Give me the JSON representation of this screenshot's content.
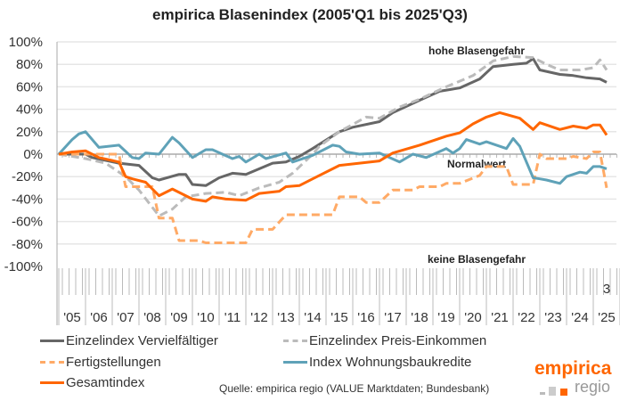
{
  "chart_data": {
    "type": "line",
    "title": "empirica Blasenindex (2005'Q1 bis 2025'Q3)",
    "x_range": [
      "2005Q1",
      "2025Q3"
    ],
    "ylim": [
      -100,
      100
    ],
    "y_ticks": [
      "100%",
      "80%",
      "60%",
      "40%",
      "20%",
      "0%",
      "-20%",
      "-40%",
      "-60%",
      "-80%",
      "-100%"
    ],
    "year_labels": [
      "'05",
      "'06",
      "'07",
      "'08",
      "'09",
      "'10",
      "'11",
      "'12",
      "'13",
      "'14",
      "'15",
      "'16",
      "'17",
      "'18",
      "'19",
      "'20",
      "'21",
      "'22",
      "'23",
      "'24",
      "'25"
    ],
    "last_quarter_label": "3",
    "grid": true,
    "annotations": {
      "high": "hohe Blasengefahr",
      "normal": "Normalwert",
      "none": "keine Blasengefahr"
    },
    "legend_placement": "bottom",
    "series": [
      {
        "name": "Einzelindex Vervielfältiger",
        "color": "#666666",
        "style": "solid",
        "points": [
          [
            "2005Q1",
            0
          ],
          [
            "2006Q1",
            0
          ],
          [
            "2006Q2",
            -3
          ],
          [
            "2007Q2",
            -8
          ],
          [
            "2008Q1",
            -10
          ],
          [
            "2008Q3",
            -21
          ],
          [
            "2008Q4",
            -23
          ],
          [
            "2009Q3",
            -18
          ],
          [
            "2009Q4",
            -18
          ],
          [
            "2010Q1",
            -27
          ],
          [
            "2010Q3",
            -28
          ],
          [
            "2011Q1",
            -21
          ],
          [
            "2011Q3",
            -17
          ],
          [
            "2012Q1",
            -18
          ],
          [
            "2013Q1",
            -8
          ],
          [
            "2013Q3",
            -7
          ],
          [
            "2014Q1",
            -2
          ],
          [
            "2014Q3",
            5
          ],
          [
            "2015Q3",
            20
          ],
          [
            "2016Q1",
            24
          ],
          [
            "2017Q1",
            29
          ],
          [
            "2017Q3",
            37
          ],
          [
            "2018Q3",
            48
          ],
          [
            "2019Q2",
            56
          ],
          [
            "2020Q1",
            59
          ],
          [
            "2020Q4",
            67
          ],
          [
            "2021Q2",
            78
          ],
          [
            "2022Q1",
            80
          ],
          [
            "2022Q3",
            81
          ],
          [
            "2022Q4",
            85
          ],
          [
            "2023Q1",
            75
          ],
          [
            "2023Q4",
            71
          ],
          [
            "2024Q2",
            70
          ],
          [
            "2024Q4",
            68
          ],
          [
            "2025Q2",
            67
          ],
          [
            "2025Q3",
            64
          ]
        ]
      },
      {
        "name": "Einzelindex Preis-Einkommen",
        "color": "#bbbbbb",
        "style": "dashed",
        "points": [
          [
            "2005Q1",
            0
          ],
          [
            "2006Q1",
            -4
          ],
          [
            "2006Q4",
            -8
          ],
          [
            "2007Q3",
            -20
          ],
          [
            "2008Q1",
            -32
          ],
          [
            "2008Q4",
            -55
          ],
          [
            "2009Q2",
            -49
          ],
          [
            "2009Q4",
            -38
          ],
          [
            "2010Q3",
            -35
          ],
          [
            "2011Q2",
            -34
          ],
          [
            "2011Q4",
            -37
          ],
          [
            "2012Q3",
            -30
          ],
          [
            "2013Q2",
            -25
          ],
          [
            "2013Q4",
            -17
          ],
          [
            "2014Q3",
            0
          ],
          [
            "2014Q4",
            7
          ],
          [
            "2015Q3",
            20
          ],
          [
            "2016Q3",
            33
          ],
          [
            "2017Q1",
            32
          ],
          [
            "2017Q4",
            42
          ],
          [
            "2018Q3",
            49
          ],
          [
            "2019Q3",
            60
          ],
          [
            "2020Q3",
            70
          ],
          [
            "2021Q2",
            83
          ],
          [
            "2022Q1",
            87
          ],
          [
            "2022Q4",
            86
          ],
          [
            "2023Q2",
            80
          ],
          [
            "2023Q4",
            75
          ],
          [
            "2024Q3",
            75
          ],
          [
            "2025Q1",
            77
          ],
          [
            "2025Q2",
            84
          ],
          [
            "2025Q3",
            75
          ]
        ]
      },
      {
        "name": "Fertigstellungen",
        "color": "#ffaa66",
        "style": "dashed",
        "points": [
          [
            "2005Q1",
            0
          ],
          [
            "2007Q2",
            0
          ],
          [
            "2007Q3",
            -29
          ],
          [
            "2008Q3",
            -29
          ],
          [
            "2008Q4",
            -57
          ],
          [
            "2009Q2",
            -57
          ],
          [
            "2009Q3",
            -77
          ],
          [
            "2010Q2",
            -77
          ],
          [
            "2010Q3",
            -79
          ],
          [
            "2012Q1",
            -79
          ],
          [
            "2012Q2",
            -67
          ],
          [
            "2013Q1",
            -67
          ],
          [
            "2013Q3",
            -54
          ],
          [
            "2015Q2",
            -54
          ],
          [
            "2015Q3",
            -38
          ],
          [
            "2016Q2",
            -38
          ],
          [
            "2016Q3",
            -43
          ],
          [
            "2017Q1",
            -43
          ],
          [
            "2017Q3",
            -32
          ],
          [
            "2018Q2",
            -32
          ],
          [
            "2018Q3",
            -29
          ],
          [
            "2019Q2",
            -29
          ],
          [
            "2019Q3",
            -26
          ],
          [
            "2020Q1",
            -26
          ],
          [
            "2020Q4",
            -19
          ],
          [
            "2021Q1",
            -11
          ],
          [
            "2021Q4",
            -11
          ],
          [
            "2022Q1",
            -27
          ],
          [
            "2022Q4",
            -27
          ],
          [
            "2023Q1",
            0
          ],
          [
            "2023Q2",
            -4
          ],
          [
            "2024Q1",
            -4
          ],
          [
            "2024Q2",
            -2
          ],
          [
            "2024Q4",
            -4
          ],
          [
            "2025Q1",
            2
          ],
          [
            "2025Q2",
            2
          ],
          [
            "2025Q3",
            -30
          ]
        ]
      },
      {
        "name": "Index Wohnungsbaukredite",
        "color": "#5fa2b8",
        "style": "solid",
        "points": [
          [
            "2005Q1",
            0
          ],
          [
            "2005Q3",
            13
          ],
          [
            "2005Q4",
            18
          ],
          [
            "2006Q1",
            20
          ],
          [
            "2006Q3",
            6
          ],
          [
            "2007Q2",
            8
          ],
          [
            "2007Q4",
            -3
          ],
          [
            "2008Q1",
            -4
          ],
          [
            "2008Q2",
            1
          ],
          [
            "2008Q4",
            0
          ],
          [
            "2009Q2",
            15
          ],
          [
            "2009Q3",
            10
          ],
          [
            "2010Q1",
            -3
          ],
          [
            "2010Q3",
            4
          ],
          [
            "2010Q4",
            4
          ],
          [
            "2011Q3",
            -4
          ],
          [
            "2011Q4",
            -2
          ],
          [
            "2012Q1",
            -7
          ],
          [
            "2012Q3",
            0
          ],
          [
            "2012Q4",
            -4
          ],
          [
            "2013Q3",
            1
          ],
          [
            "2013Q4",
            -7
          ],
          [
            "2014Q3",
            -1
          ],
          [
            "2015Q2",
            8
          ],
          [
            "2015Q3",
            7
          ],
          [
            "2015Q4",
            2
          ],
          [
            "2016Q2",
            0
          ],
          [
            "2017Q1",
            1
          ],
          [
            "2017Q4",
            -7
          ],
          [
            "2018Q2",
            0
          ],
          [
            "2018Q4",
            -3
          ],
          [
            "2019Q3",
            5
          ],
          [
            "2019Q4",
            1
          ],
          [
            "2020Q1",
            5
          ],
          [
            "2020Q2",
            13
          ],
          [
            "2020Q4",
            9
          ],
          [
            "2021Q1",
            11
          ],
          [
            "2021Q4",
            5
          ],
          [
            "2022Q1",
            14
          ],
          [
            "2022Q2",
            7
          ],
          [
            "2022Q4",
            -21
          ],
          [
            "2023Q1",
            -22
          ],
          [
            "2023Q2",
            -23
          ],
          [
            "2023Q4",
            -26
          ],
          [
            "2024Q1",
            -20
          ],
          [
            "2024Q3",
            -16
          ],
          [
            "2024Q4",
            -17
          ],
          [
            "2025Q1",
            -11
          ],
          [
            "2025Q2",
            -11
          ],
          [
            "2025Q3",
            -13
          ]
        ]
      },
      {
        "name": "Gesamtindex",
        "color": "#ff6600",
        "style": "solid",
        "points": [
          [
            "2005Q1",
            0
          ],
          [
            "2005Q3",
            2
          ],
          [
            "2006Q1",
            3
          ],
          [
            "2006Q3",
            -3
          ],
          [
            "2007Q2",
            -7
          ],
          [
            "2007Q3",
            -20
          ],
          [
            "2007Q4",
            -22
          ],
          [
            "2008Q2",
            -25
          ],
          [
            "2008Q4",
            -37
          ],
          [
            "2009Q2",
            -31
          ],
          [
            "2009Q4",
            -37
          ],
          [
            "2010Q1",
            -40
          ],
          [
            "2010Q3",
            -42
          ],
          [
            "2010Q4",
            -38
          ],
          [
            "2011Q2",
            -40
          ],
          [
            "2012Q1",
            -41
          ],
          [
            "2012Q3",
            -35
          ],
          [
            "2013Q2",
            -33
          ],
          [
            "2013Q3",
            -29
          ],
          [
            "2014Q1",
            -28
          ],
          [
            "2014Q3",
            -22
          ],
          [
            "2015Q3",
            -10
          ],
          [
            "2017Q1",
            -6
          ],
          [
            "2017Q3",
            1
          ],
          [
            "2018Q3",
            8
          ],
          [
            "2019Q3",
            16
          ],
          [
            "2020Q1",
            19
          ],
          [
            "2020Q3",
            27
          ],
          [
            "2021Q1",
            33
          ],
          [
            "2021Q3",
            37
          ],
          [
            "2022Q2",
            32
          ],
          [
            "2022Q4",
            22
          ],
          [
            "2023Q1",
            28
          ],
          [
            "2023Q4",
            22
          ],
          [
            "2024Q2",
            25
          ],
          [
            "2024Q4",
            23
          ],
          [
            "2025Q1",
            26
          ],
          [
            "2025Q2",
            26
          ],
          [
            "2025Q3",
            17
          ]
        ]
      }
    ]
  },
  "legend": [
    "Einzelindex Vervielfältiger",
    "Einzelindex Preis-Einkommen",
    "Fertigstellungen",
    "Index Wohnungsbaukredite",
    "Gesamtindex"
  ],
  "source": "Quelle: empirica regio (VALUE Marktdaten; Bundesbank)",
  "logo": {
    "line1": "empirica",
    "line2": "regio"
  }
}
